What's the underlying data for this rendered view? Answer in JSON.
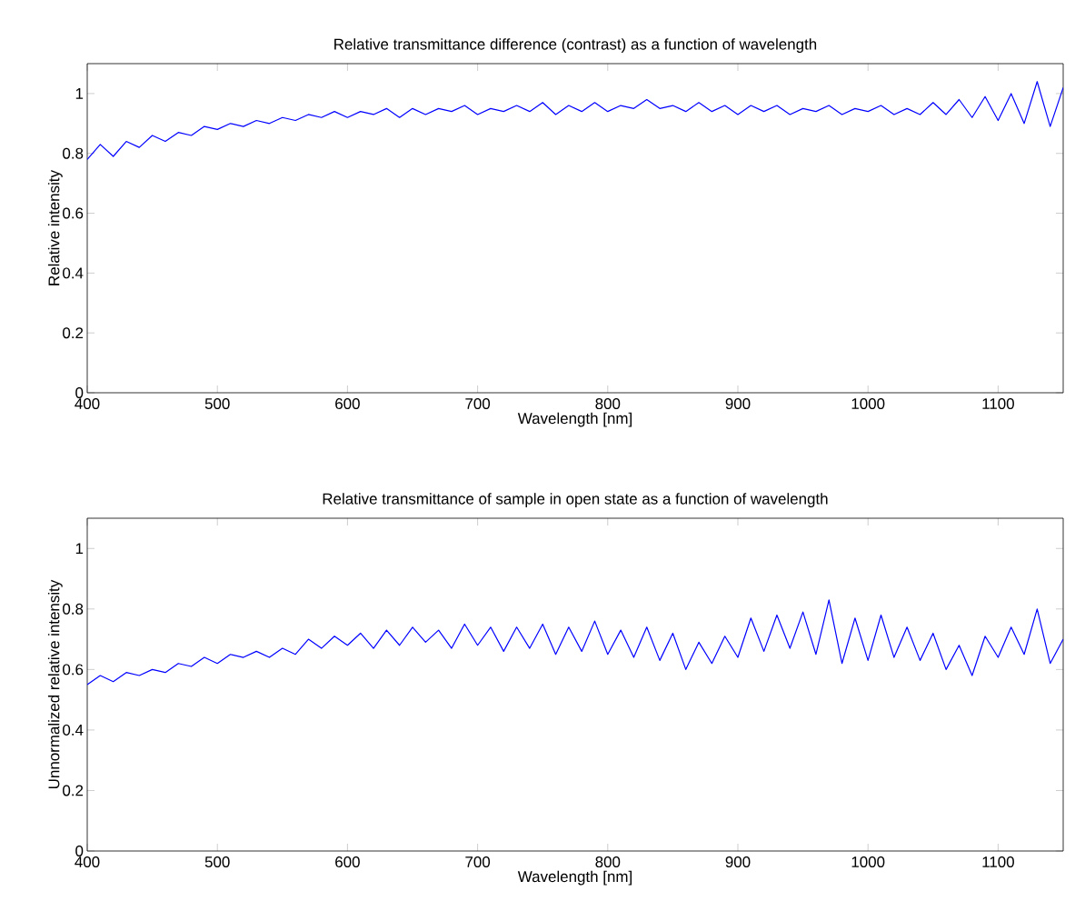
{
  "chart_data": [
    {
      "type": "line",
      "title": "Relative transmittance difference (contrast) as a function of wavelength",
      "xlabel": "Wavelength [nm]",
      "ylabel": "Relative intensity",
      "x": [
        400,
        410,
        420,
        430,
        440,
        450,
        460,
        470,
        480,
        490,
        500,
        510,
        520,
        530,
        540,
        550,
        560,
        570,
        580,
        590,
        600,
        610,
        620,
        630,
        640,
        650,
        660,
        670,
        680,
        690,
        700,
        710,
        720,
        730,
        740,
        750,
        760,
        770,
        780,
        790,
        800,
        810,
        820,
        830,
        840,
        850,
        860,
        870,
        880,
        890,
        900,
        910,
        920,
        930,
        940,
        950,
        960,
        970,
        980,
        990,
        1000,
        1010,
        1020,
        1030,
        1040,
        1050,
        1060,
        1070,
        1080,
        1090,
        1100,
        1110,
        1120,
        1130,
        1140,
        1150
      ],
      "series": [
        {
          "color": "#0000ff",
          "values": [
            0.78,
            0.83,
            0.79,
            0.84,
            0.82,
            0.86,
            0.84,
            0.87,
            0.86,
            0.89,
            0.88,
            0.9,
            0.89,
            0.91,
            0.9,
            0.92,
            0.91,
            0.93,
            0.92,
            0.94,
            0.92,
            0.94,
            0.93,
            0.95,
            0.92,
            0.95,
            0.93,
            0.95,
            0.94,
            0.96,
            0.93,
            0.95,
            0.94,
            0.96,
            0.94,
            0.97,
            0.93,
            0.96,
            0.94,
            0.97,
            0.94,
            0.96,
            0.95,
            0.98,
            0.95,
            0.96,
            0.94,
            0.97,
            0.94,
            0.96,
            0.93,
            0.96,
            0.94,
            0.96,
            0.93,
            0.95,
            0.94,
            0.96,
            0.93,
            0.95,
            0.94,
            0.96,
            0.93,
            0.95,
            0.93,
            0.97,
            0.93,
            0.98,
            0.92,
            0.99,
            0.91,
            1.0,
            0.9,
            1.04,
            0.89,
            1.02
          ]
        }
      ],
      "xlim": [
        400,
        1150
      ],
      "ylim": [
        0,
        1.1
      ],
      "xticks": [
        400,
        500,
        600,
        700,
        800,
        900,
        1000,
        1100
      ],
      "yticks": [
        0,
        0.2,
        0.4,
        0.6,
        0.8,
        1
      ]
    },
    {
      "type": "line",
      "title": "Relative transmittance of sample in open state as a function of wavelength",
      "xlabel": "Wavelength [nm]",
      "ylabel": "Unnormalized relative intensity",
      "x": [
        400,
        410,
        420,
        430,
        440,
        450,
        460,
        470,
        480,
        490,
        500,
        510,
        520,
        530,
        540,
        550,
        560,
        570,
        580,
        590,
        600,
        610,
        620,
        630,
        640,
        650,
        660,
        670,
        680,
        690,
        700,
        710,
        720,
        730,
        740,
        750,
        760,
        770,
        780,
        790,
        800,
        810,
        820,
        830,
        840,
        850,
        860,
        870,
        880,
        890,
        900,
        910,
        920,
        930,
        940,
        950,
        960,
        970,
        980,
        990,
        1000,
        1010,
        1020,
        1030,
        1040,
        1050,
        1060,
        1070,
        1080,
        1090,
        1100,
        1110,
        1120,
        1130,
        1140,
        1150
      ],
      "series": [
        {
          "color": "#0000ff",
          "values": [
            0.55,
            0.58,
            0.56,
            0.59,
            0.58,
            0.6,
            0.59,
            0.62,
            0.61,
            0.64,
            0.62,
            0.65,
            0.64,
            0.66,
            0.64,
            0.67,
            0.65,
            0.7,
            0.67,
            0.71,
            0.68,
            0.72,
            0.67,
            0.73,
            0.68,
            0.74,
            0.69,
            0.73,
            0.67,
            0.75,
            0.68,
            0.74,
            0.66,
            0.74,
            0.67,
            0.75,
            0.65,
            0.74,
            0.66,
            0.76,
            0.65,
            0.73,
            0.64,
            0.74,
            0.63,
            0.72,
            0.6,
            0.69,
            0.62,
            0.71,
            0.64,
            0.77,
            0.66,
            0.78,
            0.67,
            0.79,
            0.65,
            0.83,
            0.62,
            0.77,
            0.63,
            0.78,
            0.64,
            0.74,
            0.63,
            0.72,
            0.6,
            0.68,
            0.58,
            0.71,
            0.64,
            0.74,
            0.65,
            0.8,
            0.62,
            0.7
          ]
        }
      ],
      "xlim": [
        400,
        1150
      ],
      "ylim": [
        0,
        1.1
      ],
      "xticks": [
        400,
        500,
        600,
        700,
        800,
        900,
        1000,
        1100
      ],
      "yticks": [
        0,
        0.2,
        0.4,
        0.6,
        0.8,
        1
      ]
    }
  ]
}
